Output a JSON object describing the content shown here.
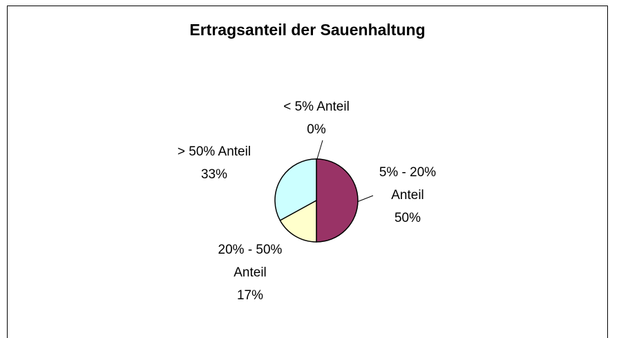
{
  "chart_data": {
    "type": "pie",
    "title": "Ertragsanteil der Sauenhaltung",
    "categories": [
      "< 5% Anteil",
      "5% - 20% Anteil",
      "20% - 50% Anteil",
      "> 50% Anteil"
    ],
    "values": [
      0,
      50,
      17,
      33
    ],
    "value_labels": [
      "0%",
      "50%",
      "17%",
      "33%"
    ],
    "colors": [
      "#333399",
      "#993366",
      "#FFFFCC",
      "#CCFFFF"
    ]
  }
}
